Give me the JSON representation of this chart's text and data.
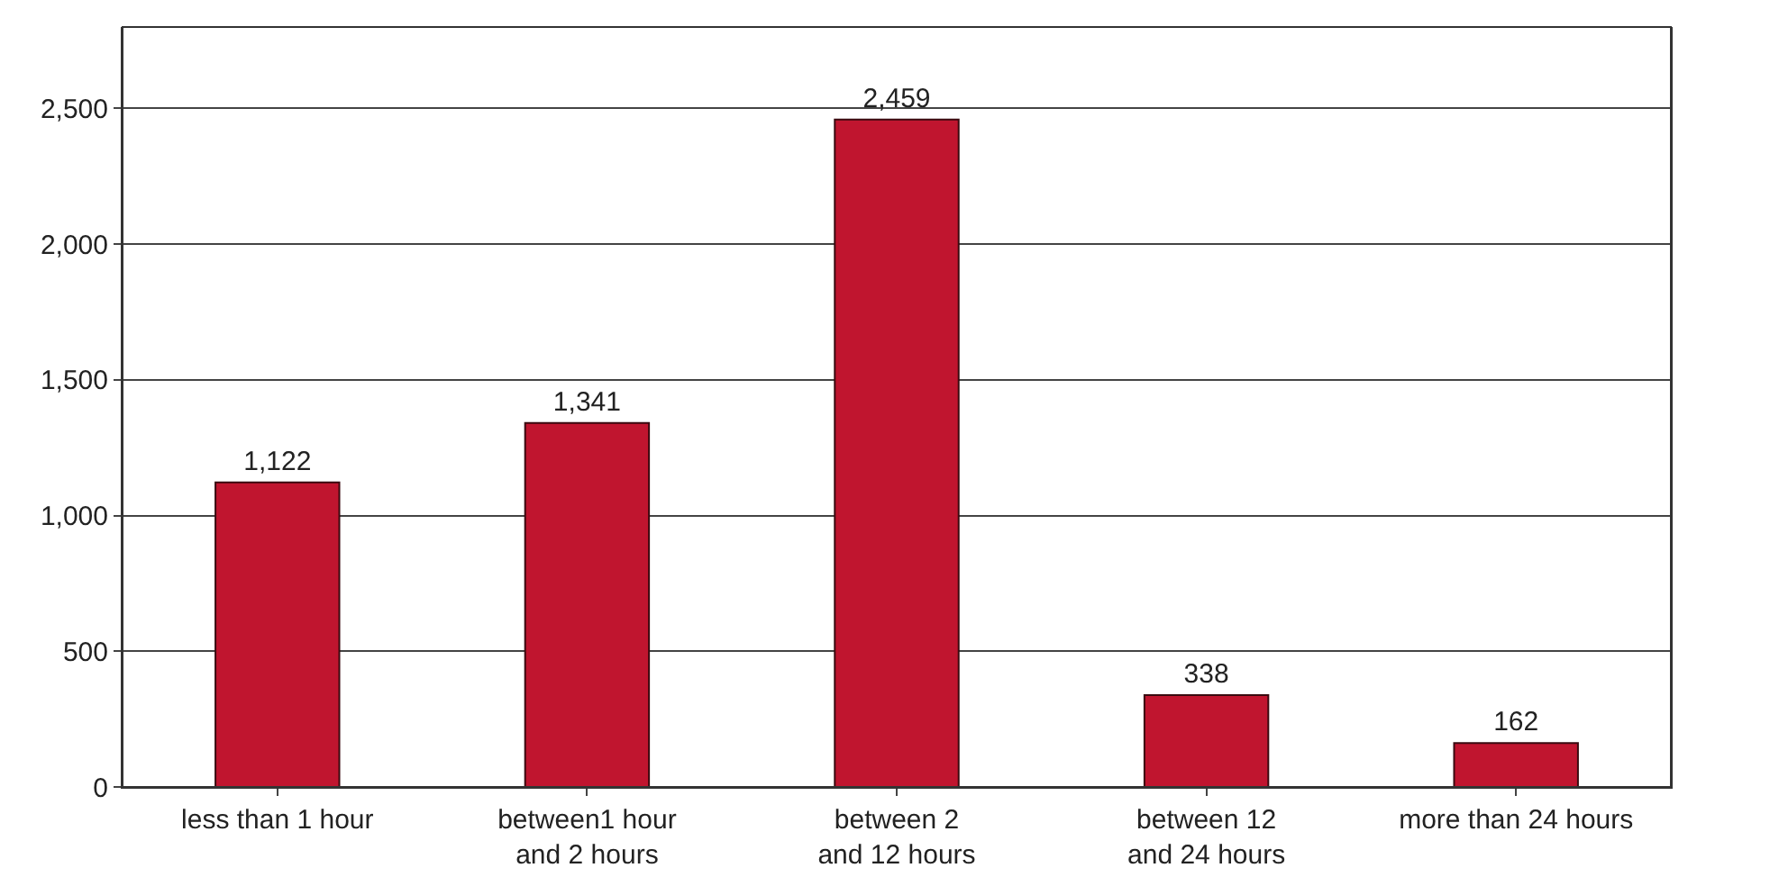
{
  "chart_data": {
    "type": "bar",
    "categories": [
      "less than 1 hour",
      "between1 hour and 2 hours",
      "between 2 and 12 hours",
      "between 12 and 24 hours",
      "more than 24 hours"
    ],
    "values": [
      1122,
      1341,
      2459,
      338,
      162
    ],
    "color": "#c0152f",
    "value_labels": [
      "1,122",
      "1,341",
      "2,459",
      "338",
      "162"
    ],
    "ylim": [
      0,
      2800
    ],
    "yticks": [
      {
        "value": 0,
        "label": "0"
      },
      {
        "value": 500,
        "label": "500"
      },
      {
        "value": 1000,
        "label": "1,000"
      },
      {
        "value": 1500,
        "label": "1,500"
      },
      {
        "value": 2000,
        "label": "2,000"
      },
      {
        "value": 2500,
        "label": "2,500"
      }
    ],
    "grid": "y"
  }
}
